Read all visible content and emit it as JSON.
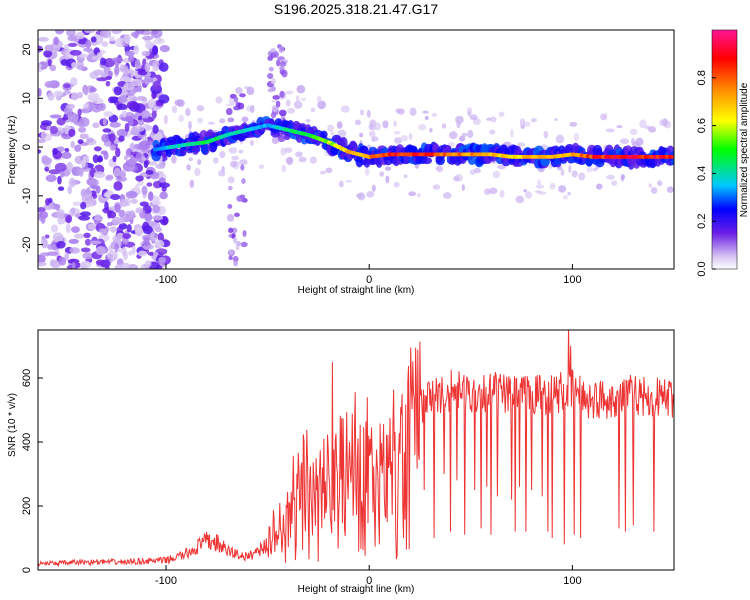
{
  "title": "S196.2025.318.21.47.G17",
  "chart_data": [
    {
      "type": "heatmap",
      "title": "S196.2025.318.21.47.G17",
      "xlabel": "Height of straight line (km)",
      "ylabel": "Frequency (Hz)",
      "xlim": [
        -163,
        150
      ],
      "ylim": [
        -25,
        24
      ],
      "xticks": [
        -100,
        0,
        100
      ],
      "xtick_labels": [
        "-100",
        "0",
        "100"
      ],
      "yticks": [
        -20,
        -10,
        0,
        10,
        20
      ],
      "ytick_labels": [
        "-20",
        "-10",
        "0",
        "10",
        "20"
      ],
      "colorbar": {
        "label": "Normalized spectral amplitude",
        "range": [
          0,
          1
        ],
        "ticks": [
          0.0,
          0.2,
          0.4,
          0.6,
          0.8
        ],
        "tick_labels": [
          "0.0",
          "0.2",
          "0.4",
          "0.6",
          "0.8"
        ],
        "colors": [
          "#ffffff",
          "#d9c7f3",
          "#6b1fe6",
          "#0000ff",
          "#00c8ff",
          "#00ff00",
          "#ffff00",
          "#ff8c00",
          "#ff0000",
          "#ff1493"
        ]
      },
      "ridge_frequency": {
        "x": [
          -105,
          -90,
          -80,
          -70,
          -60,
          -50,
          -40,
          -30,
          -20,
          -10,
          0,
          10,
          20,
          30,
          40,
          50,
          60,
          70,
          80,
          90,
          100,
          110,
          120,
          130,
          140,
          150
        ],
        "y": [
          -0.5,
          0.5,
          1.0,
          2.5,
          3.5,
          4.5,
          3.5,
          2.5,
          1.0,
          -1.0,
          -2.0,
          -1.5,
          -1.5,
          -1.5,
          -1.5,
          -1.5,
          -1.5,
          -2.0,
          -2.0,
          -2.0,
          -1.5,
          -2.0,
          -2.0,
          -2.0,
          -2.0,
          -2.0
        ]
      },
      "ridge_amplitude": {
        "x": [
          -105,
          -90,
          -80,
          -70,
          -60,
          -50,
          -40,
          -30,
          -20,
          -10,
          0,
          10,
          20,
          30,
          40,
          50,
          60,
          70,
          80,
          90,
          100,
          110,
          120,
          130,
          140,
          150
        ],
        "values": [
          0.35,
          0.45,
          0.5,
          0.45,
          0.4,
          0.35,
          0.45,
          0.5,
          0.6,
          0.75,
          0.8,
          0.9,
          0.95,
          0.9,
          0.85,
          0.8,
          0.75,
          0.7,
          0.75,
          0.8,
          0.75,
          0.9,
          0.95,
          0.95,
          0.95,
          0.95
        ]
      }
    },
    {
      "type": "line",
      "xlabel": "Height of straight line (km)",
      "ylabel": "SNR (10 * v/v)",
      "xlim": [
        -163,
        150
      ],
      "ylim": [
        0,
        750
      ],
      "xticks": [
        -100,
        0,
        100
      ],
      "xtick_labels": [
        "-100",
        "0",
        "100"
      ],
      "yticks": [
        0,
        200,
        400,
        600
      ],
      "ytick_labels": [
        "0",
        "200",
        "400",
        "600"
      ],
      "color": "#ee3333",
      "series": [
        {
          "name": "SNR",
          "x": [
            -163,
            -150,
            -140,
            -130,
            -120,
            -110,
            -100,
            -95,
            -90,
            -85,
            -80,
            -75,
            -70,
            -65,
            -60,
            -55,
            -50,
            -45,
            -40,
            -35,
            -30,
            -25,
            -20,
            -15,
            -10,
            -5,
            0,
            5,
            10,
            15,
            20,
            25,
            30,
            40,
            50,
            60,
            70,
            80,
            90,
            100,
            110,
            120,
            130,
            140,
            150
          ],
          "values": [
            20,
            22,
            25,
            25,
            25,
            28,
            30,
            40,
            50,
            70,
            90,
            85,
            60,
            50,
            40,
            60,
            80,
            120,
            160,
            200,
            230,
            250,
            270,
            300,
            320,
            330,
            300,
            290,
            300,
            330,
            420,
            500,
            540,
            560,
            550,
            560,
            540,
            550,
            550,
            560,
            530,
            540,
            550,
            540,
            540
          ]
        }
      ],
      "dropouts": {
        "x": [
          5,
          9,
          13,
          17,
          27,
          32,
          37,
          40,
          43,
          47,
          52,
          55,
          58,
          60,
          63,
          70,
          72,
          74,
          77,
          80,
          85,
          88,
          90,
          96,
          98,
          101,
          104,
          123,
          126,
          130,
          140
        ],
        "values": [
          80,
          150,
          120,
          100,
          250,
          100,
          300,
          120,
          280,
          110,
          250,
          130,
          260,
          110,
          230,
          220,
          120,
          260,
          120,
          250,
          230,
          120,
          100,
          80,
          90,
          110,
          100,
          130,
          120,
          140,
          120
        ]
      },
      "spikes": {
        "x": [
          -18,
          -1,
          98,
          99
        ],
        "values": [
          650,
          540,
          760,
          700
        ]
      }
    }
  ]
}
